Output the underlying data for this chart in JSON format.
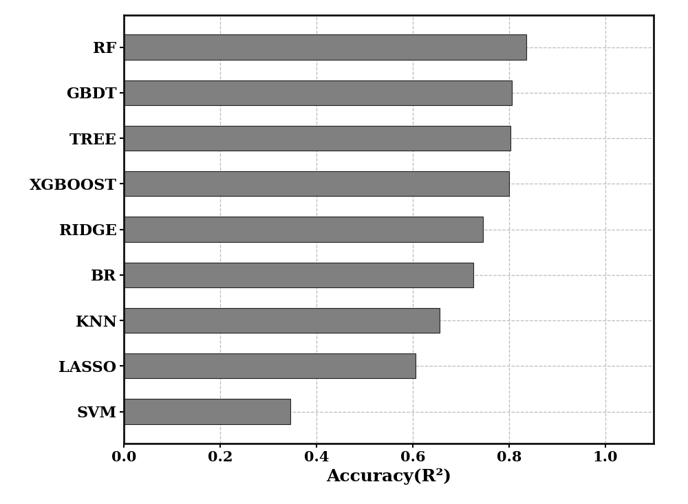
{
  "categories": [
    "SVM",
    "LASSO",
    "KNN",
    "BR",
    "RIDGE",
    "XGBOOST",
    "TREE",
    "GBDT",
    "RF"
  ],
  "values": [
    0.345,
    0.605,
    0.655,
    0.725,
    0.745,
    0.8,
    0.803,
    0.806,
    0.835
  ],
  "bar_color": "#808080",
  "xlabel": "Accuracy(R²)",
  "xlim": [
    0.0,
    1.1
  ],
  "xticks": [
    0.0,
    0.2,
    0.4,
    0.6,
    0.8,
    1.0
  ],
  "xlabel_fontsize": 18,
  "tick_fontsize": 15,
  "ytick_fontsize": 16,
  "bar_height": 0.55,
  "grid_color": "#bbbbbb",
  "background_color": "#ffffff",
  "edge_color": "#222222",
  "spine_linewidth": 2.0
}
